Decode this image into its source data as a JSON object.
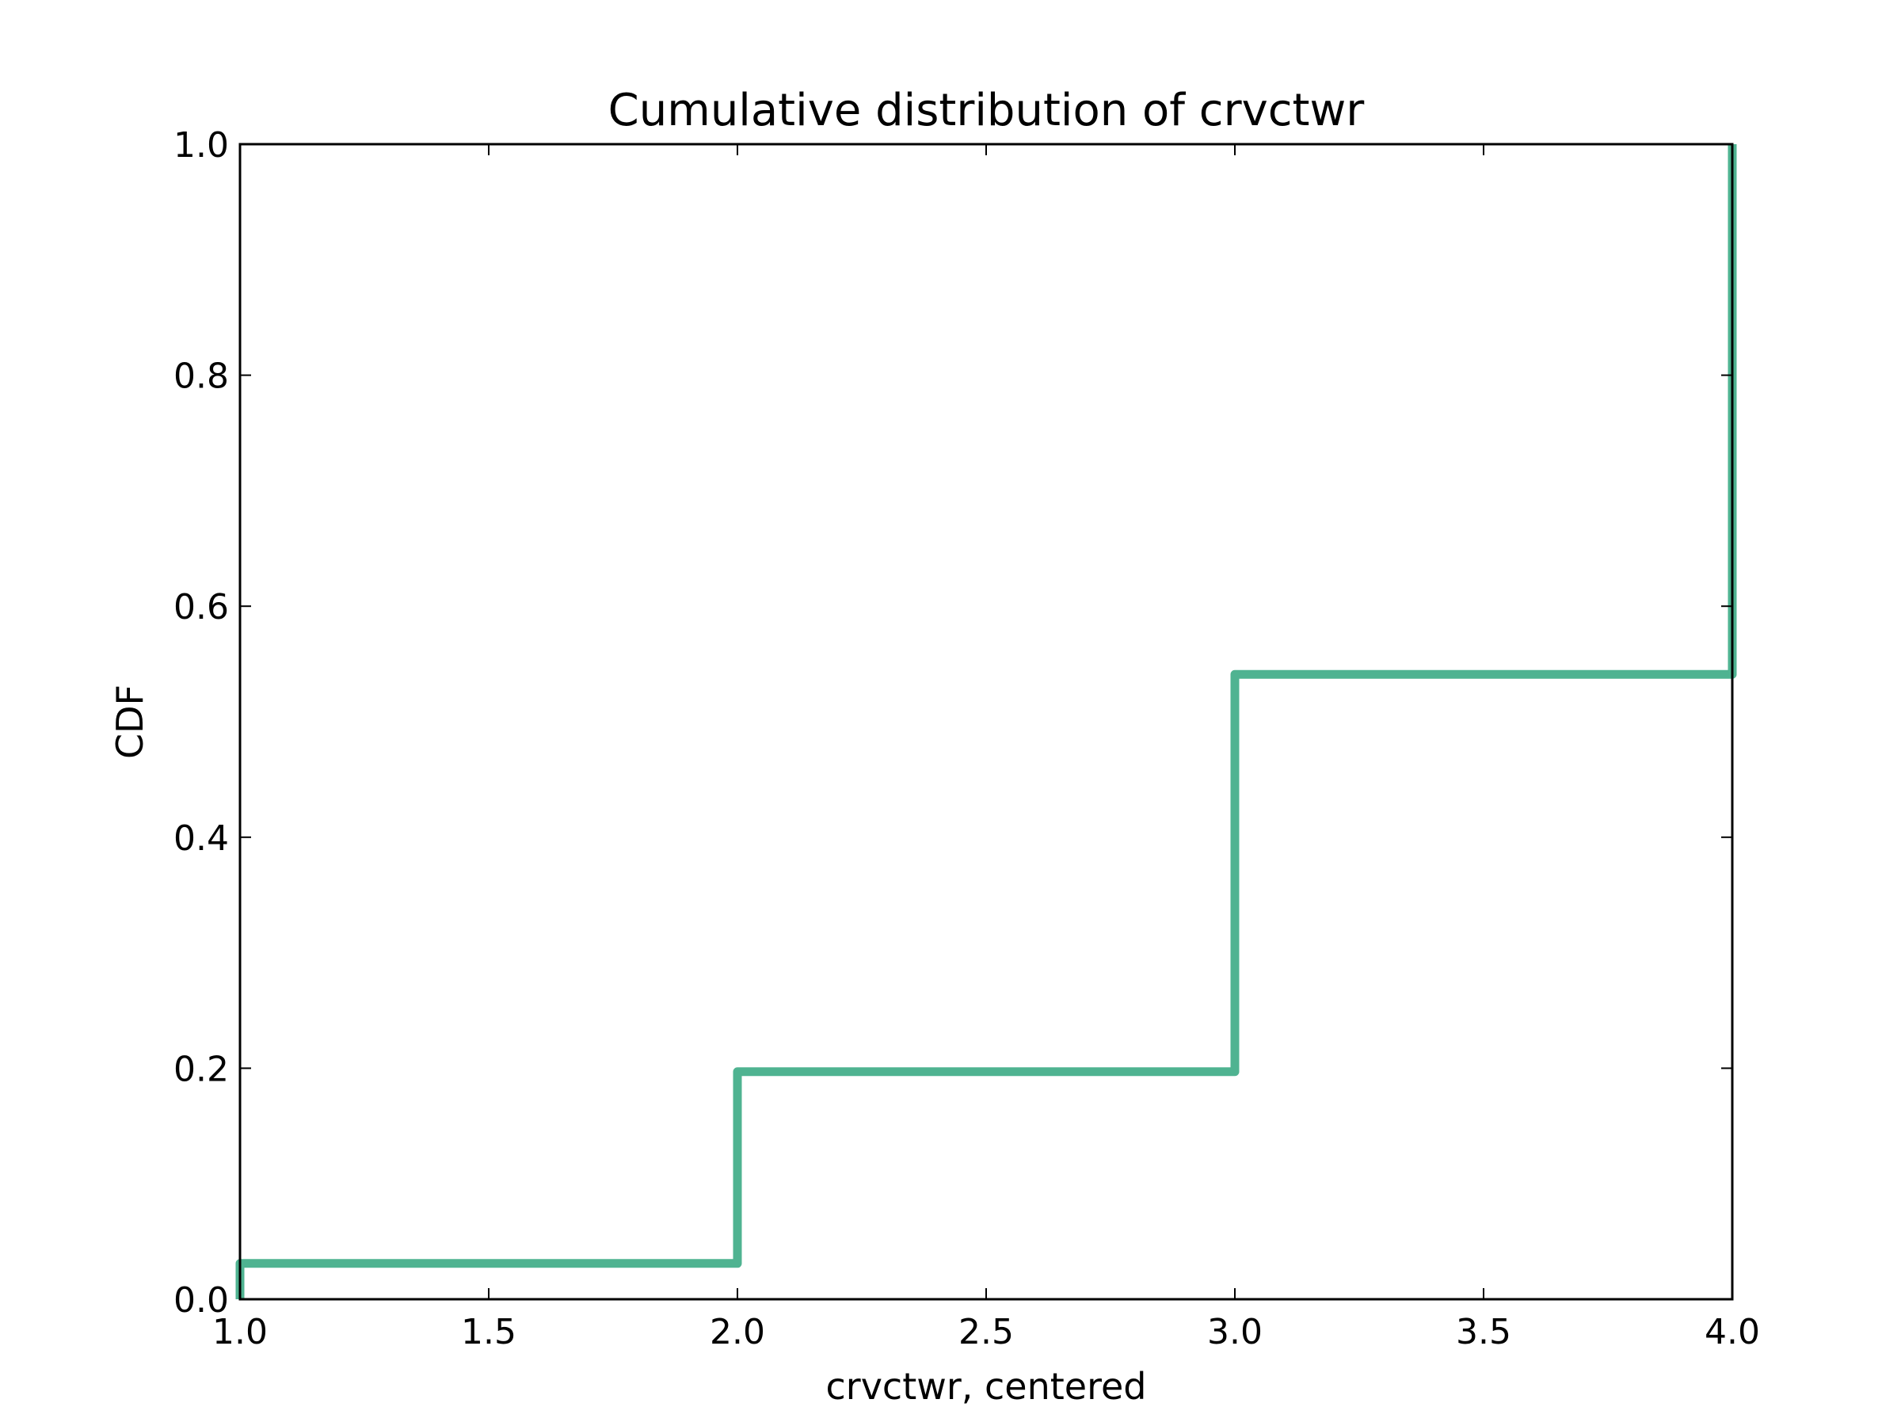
{
  "chart_data": {
    "type": "line",
    "step": "post",
    "title": "Cumulative distribution of crvctwr",
    "xlabel": "crvctwr, centered",
    "ylabel": "CDF",
    "xlim": [
      1.0,
      4.0
    ],
    "ylim": [
      0.0,
      1.0
    ],
    "xticks": [
      "1.0",
      "1.5",
      "2.0",
      "2.5",
      "3.0",
      "3.5",
      "4.0"
    ],
    "yticks": [
      "0.0",
      "0.2",
      "0.4",
      "0.6",
      "0.8",
      "1.0"
    ],
    "grid": false,
    "legend": "none",
    "series": [
      {
        "color": "#4fb391",
        "x": [
          1.0,
          1.0,
          2.0,
          2.0,
          3.0,
          3.0,
          4.0,
          4.0
        ],
        "y": [
          0.0,
          0.031,
          0.031,
          0.197,
          0.197,
          0.541,
          0.541,
          1.0
        ]
      }
    ]
  }
}
